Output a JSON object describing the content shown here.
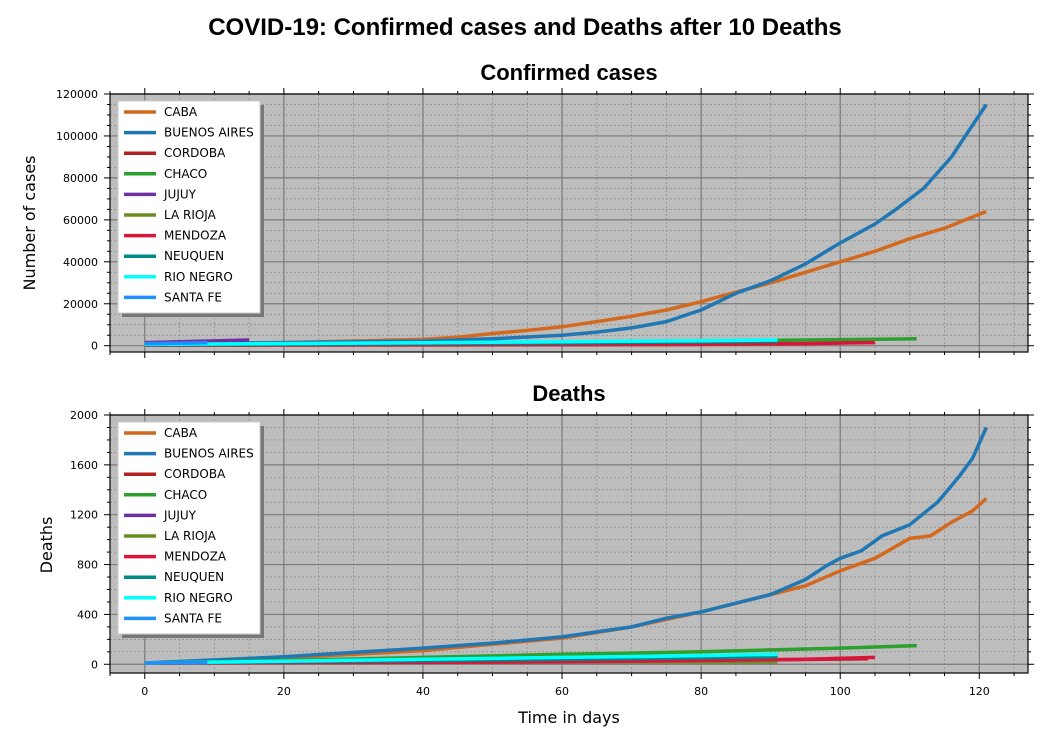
{
  "figure": {
    "suptitle": "COVID-19: Confirmed cases and Deaths after 10 Deaths",
    "xlabel": "Time in days"
  },
  "chart_data": [
    {
      "type": "line",
      "title": "Confirmed cases",
      "ylabel": "Number of cases",
      "xlim": [
        -5,
        127
      ],
      "ylim": [
        -3000,
        120000
      ],
      "xticks": [
        0,
        20,
        40,
        60,
        80,
        100,
        120
      ],
      "yticks": [
        0,
        20000,
        40000,
        60000,
        80000,
        100000,
        120000
      ],
      "grid": true,
      "legend_position": "upper-left",
      "series": [
        {
          "name": "CABA",
          "color": "#d2691e",
          "points": [
            [
              0,
              800
            ],
            [
              20,
              1500
            ],
            [
              40,
              3000
            ],
            [
              45,
              4000
            ],
            [
              50,
              5800
            ],
            [
              55,
              7300
            ],
            [
              60,
              9000
            ],
            [
              65,
              11500
            ],
            [
              70,
              14000
            ],
            [
              75,
              17000
            ],
            [
              80,
              21000
            ],
            [
              85,
              25500
            ],
            [
              90,
              30000
            ],
            [
              95,
              35000
            ],
            [
              100,
              40000
            ],
            [
              105,
              45000
            ],
            [
              110,
              51000
            ],
            [
              115,
              56000
            ],
            [
              121,
              64000
            ]
          ]
        },
        {
          "name": "BUENOS AIRES",
          "color": "#1f77b4",
          "points": [
            [
              0,
              900
            ],
            [
              20,
              1500
            ],
            [
              40,
              2200
            ],
            [
              50,
              3300
            ],
            [
              60,
              5000
            ],
            [
              65,
              6500
            ],
            [
              70,
              8500
            ],
            [
              75,
              11500
            ],
            [
              80,
              17000
            ],
            [
              85,
              25000
            ],
            [
              90,
              31000
            ],
            [
              95,
              39000
            ],
            [
              100,
              49000
            ],
            [
              105,
              58000
            ],
            [
              108,
              65000
            ],
            [
              112,
              75000
            ],
            [
              116,
              90000
            ],
            [
              121,
              115000
            ]
          ]
        },
        {
          "name": "CORDOBA",
          "color": "#b22222",
          "points": [
            [
              0,
              300
            ],
            [
              30,
              400
            ],
            [
              60,
              500
            ],
            [
              80,
              600
            ],
            [
              90,
              800
            ],
            [
              95,
              1000
            ],
            [
              100,
              1300
            ],
            [
              104,
              1700
            ]
          ]
        },
        {
          "name": "CHACO",
          "color": "#2ca02c",
          "points": [
            [
              0,
              400
            ],
            [
              20,
              700
            ],
            [
              40,
              1100
            ],
            [
              60,
              1600
            ],
            [
              80,
              2200
            ],
            [
              100,
              2900
            ],
            [
              111,
              3300
            ]
          ]
        },
        {
          "name": "JUJUY",
          "color": "#7030a0",
          "points": [
            [
              0,
              1500
            ],
            [
              5,
              1900
            ],
            [
              10,
              2300
            ],
            [
              15,
              2700
            ]
          ]
        },
        {
          "name": "LA RIOJA",
          "color": "#6b8e23",
          "points": [
            [
              0,
              300
            ],
            [
              30,
              400
            ],
            [
              60,
              500
            ],
            [
              80,
              600
            ],
            [
              91,
              650
            ]
          ]
        },
        {
          "name": "MENDOZA",
          "color": "#dc143c",
          "points": [
            [
              0,
              300
            ],
            [
              40,
              400
            ],
            [
              60,
              500
            ],
            [
              80,
              700
            ],
            [
              95,
              1000
            ],
            [
              100,
              1300
            ],
            [
              105,
              1500
            ]
          ]
        },
        {
          "name": "NEUQUEN",
          "color": "#008b8b",
          "points": [
            [
              0,
              400
            ],
            [
              30,
              800
            ],
            [
              60,
              1300
            ],
            [
              80,
              1800
            ],
            [
              91,
              2200
            ]
          ]
        },
        {
          "name": "RIO NEGRO",
          "color": "#00ffff",
          "points": [
            [
              0,
              600
            ],
            [
              20,
              1000
            ],
            [
              40,
              1400
            ],
            [
              60,
              1900
            ],
            [
              80,
              2400
            ],
            [
              91,
              2700
            ]
          ]
        },
        {
          "name": "SANTA FE",
          "color": "#1e90ff",
          "points": [
            [
              0,
              1000
            ],
            [
              5,
              1200
            ],
            [
              9,
              1400
            ]
          ]
        }
      ]
    },
    {
      "type": "line",
      "title": "Deaths",
      "ylabel": "Deaths",
      "xlim": [
        -5,
        127
      ],
      "ylim": [
        -70,
        2000
      ],
      "xticks": [
        0,
        20,
        40,
        60,
        80,
        100,
        120
      ],
      "yticks": [
        0,
        400,
        800,
        1200,
        1600,
        2000
      ],
      "grid": true,
      "legend_position": "upper-left",
      "series": [
        {
          "name": "CABA",
          "color": "#d2691e",
          "points": [
            [
              0,
              10
            ],
            [
              20,
              50
            ],
            [
              40,
              110
            ],
            [
              50,
              160
            ],
            [
              60,
              210
            ],
            [
              70,
              300
            ],
            [
              80,
              420
            ],
            [
              90,
              560
            ],
            [
              95,
              630
            ],
            [
              100,
              750
            ],
            [
              105,
              850
            ],
            [
              110,
              1010
            ],
            [
              113,
              1030
            ],
            [
              116,
              1140
            ],
            [
              119,
              1230
            ],
            [
              121,
              1330
            ]
          ]
        },
        {
          "name": "BUENOS AIRES",
          "color": "#1f77b4",
          "points": [
            [
              0,
              10
            ],
            [
              20,
              60
            ],
            [
              40,
              130
            ],
            [
              50,
              170
            ],
            [
              60,
              220
            ],
            [
              65,
              260
            ],
            [
              70,
              300
            ],
            [
              75,
              370
            ],
            [
              80,
              420
            ],
            [
              85,
              490
            ],
            [
              90,
              560
            ],
            [
              95,
              680
            ],
            [
              98,
              790
            ],
            [
              100,
              850
            ],
            [
              103,
              910
            ],
            [
              106,
              1030
            ],
            [
              110,
              1120
            ],
            [
              114,
              1300
            ],
            [
              117,
              1500
            ],
            [
              119,
              1650
            ],
            [
              121,
              1900
            ]
          ]
        },
        {
          "name": "CORDOBA",
          "color": "#b22222",
          "points": [
            [
              0,
              10
            ],
            [
              30,
              20
            ],
            [
              60,
              25
            ],
            [
              80,
              30
            ],
            [
              90,
              35
            ],
            [
              104,
              45
            ]
          ]
        },
        {
          "name": "CHACO",
          "color": "#2ca02c",
          "points": [
            [
              0,
              10
            ],
            [
              20,
              30
            ],
            [
              40,
              55
            ],
            [
              60,
              80
            ],
            [
              80,
              100
            ],
            [
              100,
              130
            ],
            [
              111,
              150
            ]
          ]
        },
        {
          "name": "JUJUY",
          "color": "#7030a0",
          "points": [
            [
              0,
              10
            ],
            [
              15,
              12
            ]
          ]
        },
        {
          "name": "LA RIOJA",
          "color": "#6b8e23",
          "points": [
            [
              0,
              10
            ],
            [
              30,
              14
            ],
            [
              60,
              18
            ],
            [
              91,
              20
            ]
          ]
        },
        {
          "name": "MENDOZA",
          "color": "#dc143c",
          "points": [
            [
              0,
              10
            ],
            [
              40,
              15
            ],
            [
              60,
              20
            ],
            [
              80,
              30
            ],
            [
              95,
              40
            ],
            [
              105,
              55
            ]
          ]
        },
        {
          "name": "NEUQUEN",
          "color": "#008b8b",
          "points": [
            [
              0,
              10
            ],
            [
              30,
              25
            ],
            [
              60,
              40
            ],
            [
              91,
              60
            ]
          ]
        },
        {
          "name": "RIO NEGRO",
          "color": "#00ffff",
          "points": [
            [
              0,
              10
            ],
            [
              20,
              25
            ],
            [
              40,
              40
            ],
            [
              60,
              55
            ],
            [
              80,
              70
            ],
            [
              91,
              80
            ]
          ]
        },
        {
          "name": "SANTA FE",
          "color": "#1e90ff",
          "points": [
            [
              0,
              10
            ],
            [
              5,
              12
            ],
            [
              9,
              14
            ]
          ]
        }
      ]
    }
  ]
}
